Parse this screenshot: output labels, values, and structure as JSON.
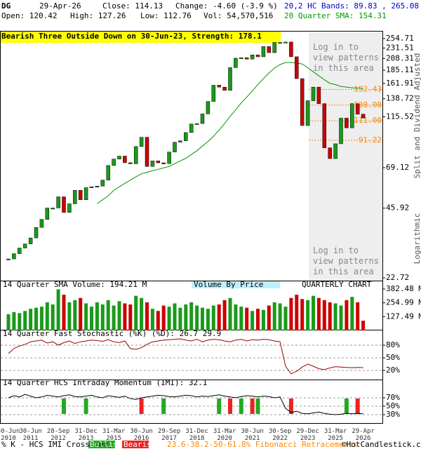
{
  "header": {
    "symbol": "DG",
    "date": "29-Apr-26",
    "close": "Close: 114.13",
    "change": "Change: -4.60 (-3.9 %)",
    "bands": "20,2 HC Bands: 89.83 , 265.08",
    "open": "Open: 120.42",
    "high": "High: 127.26",
    "low": "Low: 112.76",
    "volume": "Vol: 54,570,516"
  },
  "chart_data": [
    {
      "type": "candlestick",
      "annotation": "Bearish Three Outside Down on 30-Jun-23, Strength: 178.1",
      "categories": [
        "30-Jun 2010",
        null,
        null,
        null,
        "30-Jun 2011",
        null,
        null,
        null,
        null,
        "28-Sep 2012",
        null,
        null,
        null,
        null,
        "31-Dec 2013",
        null,
        null,
        null,
        null,
        "31-Mar 2015",
        null,
        null,
        null,
        null,
        "30-Jun 2016",
        null,
        null,
        null,
        null,
        "29-Sep 2017",
        null,
        null,
        null,
        null,
        "31-Dec 2018",
        null,
        null,
        null,
        null,
        "31-Mar 2020",
        null,
        null,
        null,
        null,
        "30-Jun 2021",
        null,
        null,
        null,
        null,
        "30-Sep 2022",
        null,
        null,
        null,
        null,
        "29-Dec 2023",
        null,
        null,
        null,
        null,
        "31-Mar 2025",
        null,
        null,
        null,
        null,
        "29-Apr 2026"
      ],
      "values": [
        27.5,
        29,
        30.7,
        32,
        34,
        37.8,
        41,
        46,
        46,
        51.5,
        44,
        48,
        55,
        50,
        56.5,
        57,
        57.4,
        61,
        70.7,
        75.4,
        77.7,
        72.7,
        71.9,
        85.6,
        94,
        70,
        74,
        72.6,
        72,
        81,
        89.4,
        90.7,
        98.6,
        107.5,
        108,
        119,
        135,
        159,
        156,
        151,
        190,
        209,
        210,
        207,
        216,
        212,
        235,
        221,
        245,
        245,
        246,
        212,
        170,
        105.8,
        136,
        156,
        132,
        84.5,
        75.8,
        88,
        114,
        103.4,
        132,
        118.7,
        114.13
      ],
      "up_color": "#1a9a1a",
      "down_color": "#cc0000",
      "series": [
        {
          "name": "20 Quarter SMA: 154.31",
          "color": "#009900",
          "values": [
            null,
            null,
            null,
            null,
            null,
            null,
            null,
            null,
            null,
            null,
            null,
            null,
            null,
            null,
            null,
            null,
            48,
            50,
            52,
            55,
            57,
            59,
            61,
            63,
            65,
            66,
            67,
            68,
            69,
            70,
            72,
            74,
            76,
            79,
            82,
            86,
            90,
            95,
            101,
            108,
            116,
            124,
            133,
            141,
            150,
            160,
            170,
            180,
            189,
            196,
            200,
            200,
            199,
            197,
            190,
            182,
            175,
            168,
            162,
            160,
            157,
            156,
            155,
            154.5,
            154.31
          ]
        }
      ],
      "log_scale": true,
      "ylim": [
        22.72,
        254.71
      ],
      "yticks": [
        254.71,
        231.51,
        208.31,
        185.11,
        161.91,
        138.72,
        115.52,
        69.12,
        45.92,
        22.72
      ],
      "levels": [
        152.43,
        130.08,
        {
          "value": 111,
          "label": "111.00"
        },
        91.22
      ],
      "level_color": "#ff8800",
      "notes": [
        "Log in to view patterns in this area",
        "Log in to view patterns in this area"
      ],
      "side_labels": [
        "Split and Dividend Adjusted",
        "Logarithmic"
      ]
    },
    {
      "type": "bar",
      "title": "14 Quarter SMA Volume: 194.21 M",
      "annotations": [
        "Volume By Price",
        "QUARTERLY CHART"
      ],
      "values": [
        150,
        170,
        160,
        180,
        200,
        210,
        220,
        260,
        240,
        380,
        330,
        260,
        280,
        300,
        250,
        220,
        260,
        240,
        280,
        230,
        270,
        250,
        240,
        320,
        300,
        260,
        200,
        180,
        230,
        220,
        250,
        210,
        240,
        260,
        230,
        210,
        200,
        230,
        240,
        280,
        300,
        240,
        220,
        210,
        180,
        200,
        190,
        230,
        260,
        250,
        220,
        300,
        330,
        290,
        280,
        320,
        300,
        280,
        260,
        250,
        230,
        280,
        310,
        260,
        90
      ],
      "ylim": [
        0,
        382.48
      ],
      "yticks": [
        {
          "value": 382.48,
          "label": "382.48 M"
        },
        {
          "value": 254.99,
          "label": "254.99 M"
        },
        {
          "value": 127.49,
          "label": "127.49 M"
        }
      ]
    },
    {
      "type": "line",
      "title": "14 Quarter Fast Stochastic (%K) (%D): 26.7  29.9",
      "color": "#990000",
      "values": [
        60,
        72,
        78,
        82,
        88,
        90,
        92,
        85,
        88,
        80,
        86,
        90,
        84,
        88,
        90,
        92,
        91,
        89,
        93,
        88,
        86,
        90,
        72,
        70,
        74,
        82,
        88,
        90,
        92,
        93,
        94,
        95,
        92,
        90,
        94,
        88,
        92,
        94,
        93,
        90,
        88,
        92,
        94,
        90,
        93,
        92,
        94,
        93,
        90,
        88,
        30,
        12,
        18,
        28,
        35,
        30,
        24,
        22,
        26,
        29,
        28,
        27,
        26.5,
        27,
        26.7
      ],
      "ylim": [
        0,
        100
      ],
      "yticks": [
        {
          "value": 80,
          "label": "80%"
        },
        {
          "value": 50,
          "label": "50%"
        },
        {
          "value": 20,
          "label": "20%"
        }
      ]
    },
    {
      "type": "line",
      "title": "14 Quarter HCS Intraday Momentum (IMI): 32.1",
      "color": "#000000",
      "values": [
        70,
        75,
        72,
        78,
        74,
        70,
        72,
        76,
        74,
        72,
        75,
        77,
        73,
        72,
        74,
        76,
        72,
        70,
        75,
        73,
        71,
        74,
        68,
        66,
        70,
        72,
        74,
        76,
        75,
        73,
        72,
        74,
        76,
        75,
        72,
        74,
        73,
        75,
        77,
        74,
        72,
        70,
        73,
        75,
        74,
        72,
        74,
        73,
        70,
        72,
        45,
        35,
        38,
        33,
        32,
        34,
        36,
        33,
        31,
        30,
        31,
        33,
        32,
        33,
        32.1
      ],
      "bullish": [
        10,
        14,
        28,
        38,
        42,
        45,
        61
      ],
      "bearish": [
        24,
        40,
        44,
        51,
        63
      ],
      "bullish_color": "#22aa22",
      "bearish_color": "#ee2222",
      "ylim": [
        0,
        100
      ],
      "yticks": [
        {
          "value": 70,
          "label": "70%"
        },
        {
          "value": 50,
          "label": "50%"
        },
        {
          "value": 30,
          "label": "30%"
        }
      ]
    }
  ],
  "footer": {
    "legend": "% K - HCS IMI Crossover,",
    "bullish": "Bullish",
    "bearish": "Bearish",
    "fibonacci": "23.6-38.2-50-61.8% Fibonacci Retracements",
    "copyright": "©HotCandlestick.com"
  }
}
